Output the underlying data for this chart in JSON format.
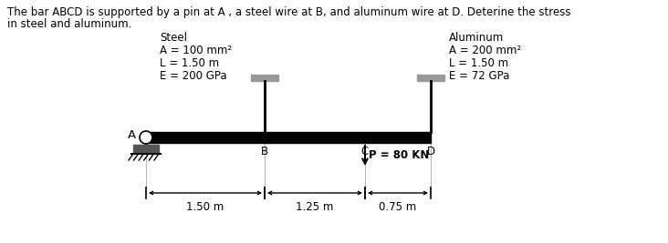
{
  "title_line1": "The bar ABCD is supported by a pin at A , a steel wire at B, and aluminum wire at D. Deterine the stress",
  "title_line2": "in steel and aluminum.",
  "steel_label": "Steel",
  "steel_A": "A = 100 mm²",
  "steel_L": "L = 1.50 m",
  "steel_E": "E = 200 GPa",
  "alum_label": "Aluminum",
  "alum_A": "A = 200 mm²",
  "alum_L": "L = 1.50 m",
  "alum_E": "E = 72 GPa",
  "load_label": "P = 80 KN",
  "dim1": "1.50 m",
  "dim2": "1.25 m",
  "dim3": "0.75 m",
  "point_A": "A",
  "point_B": "B",
  "point_C": "C",
  "point_D": "D",
  "bar_color": "#000000",
  "cap_color": "#999999",
  "bg_color": "#ffffff",
  "text_color": "#000000",
  "font_size": 8.5
}
